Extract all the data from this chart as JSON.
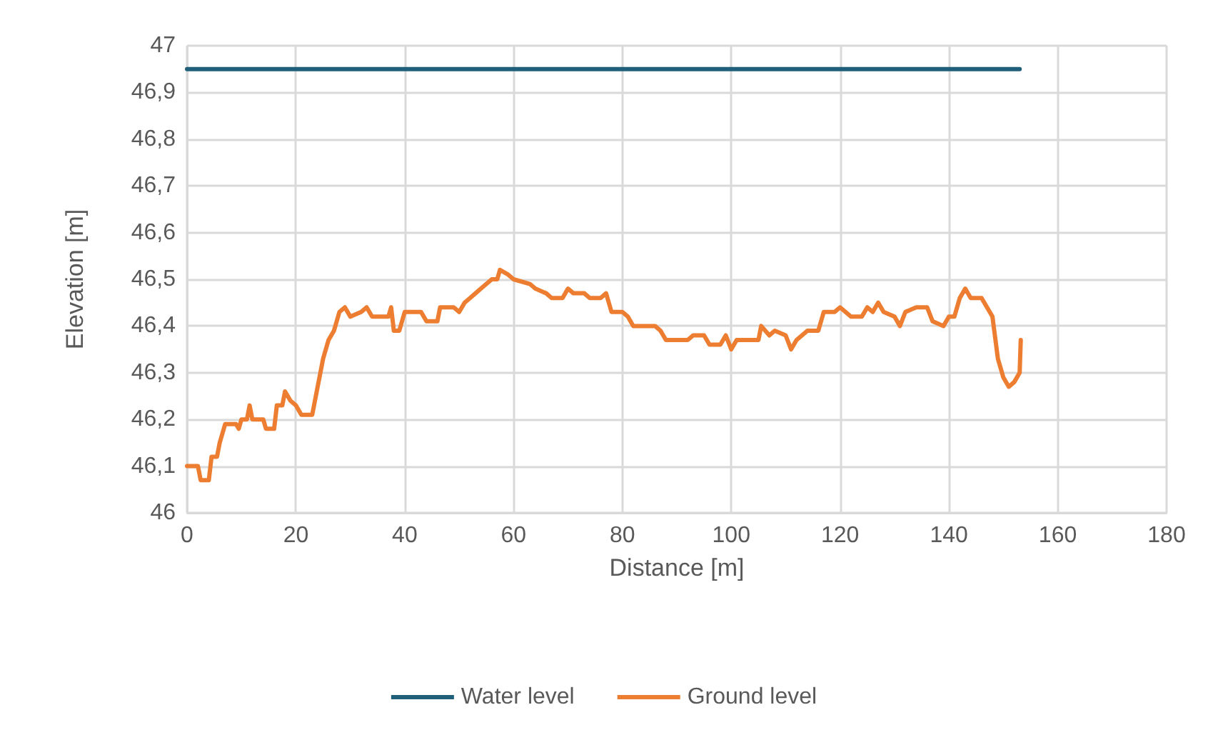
{
  "chart_data": {
    "type": "line",
    "xlabel": "Distance [m]",
    "ylabel": "Elevation [m]",
    "xlim": [
      0,
      180
    ],
    "xticks": [
      0,
      20,
      40,
      60,
      80,
      100,
      120,
      140,
      160,
      180
    ],
    "ylim": [
      46,
      47
    ],
    "yticks": [
      46,
      {
        "value": 46.1,
        "label": "46,1"
      },
      {
        "value": 46.2,
        "label": "46,2"
      },
      {
        "value": 46.3,
        "label": "46,3"
      },
      {
        "value": 46.4,
        "label": "46,4"
      },
      {
        "value": 46.5,
        "label": "46,5"
      },
      {
        "value": 46.6,
        "label": "46,6"
      },
      {
        "value": 46.7,
        "label": "46,7"
      },
      {
        "value": 46.8,
        "label": "46,8"
      },
      {
        "value": 46.9,
        "label": "46,9"
      },
      47
    ],
    "grid": true,
    "legend": "bottom",
    "marker": "none",
    "line_style": "solid",
    "series": [
      {
        "name": "Water level",
        "color": "#1f5f7a",
        "x": [
          0,
          153
        ],
        "values": [
          46.95,
          46.95
        ]
      },
      {
        "name": "Ground level",
        "color": "#ed7d31",
        "x": [
          0,
          2,
          2.5,
          4,
          4.5,
          5.5,
          6,
          7,
          9,
          9.5,
          10,
          11,
          11.5,
          12,
          14,
          14.5,
          16,
          16.5,
          17.5,
          18,
          19,
          20,
          21,
          23,
          24,
          25,
          26,
          27,
          28,
          29,
          30,
          32,
          33,
          34,
          37,
          37.5,
          38,
          39,
          40,
          41,
          43,
          44,
          46,
          46.5,
          49,
          50,
          51,
          52,
          53,
          54,
          56,
          57,
          57.5,
          59,
          60,
          63,
          64,
          66,
          67,
          69,
          70,
          71,
          73,
          74,
          76,
          77,
          78,
          80,
          81,
          82,
          84,
          86,
          87,
          88,
          92,
          93,
          95,
          96,
          98,
          99,
          100,
          101,
          105,
          105.5,
          107,
          108,
          110,
          111,
          112,
          114,
          116,
          117,
          119,
          120,
          122,
          124,
          125,
          126,
          127,
          128,
          130,
          131,
          132,
          134,
          136,
          137,
          139,
          140,
          141,
          142,
          143,
          144,
          146,
          147,
          148,
          149,
          150,
          151,
          152,
          153,
          153.2
        ],
        "values": [
          46.1,
          46.1,
          46.07,
          46.07,
          46.12,
          46.12,
          46.15,
          46.19,
          46.19,
          46.18,
          46.2,
          46.2,
          46.23,
          46.2,
          46.2,
          46.18,
          46.18,
          46.23,
          46.23,
          46.26,
          46.24,
          46.23,
          46.21,
          46.21,
          46.27,
          46.33,
          46.37,
          46.39,
          46.43,
          46.44,
          46.42,
          46.43,
          46.44,
          46.42,
          46.42,
          46.44,
          46.39,
          46.39,
          46.43,
          46.43,
          46.43,
          46.41,
          46.41,
          46.44,
          46.44,
          46.43,
          46.45,
          46.46,
          46.47,
          46.48,
          46.5,
          46.5,
          46.52,
          46.51,
          46.5,
          46.49,
          46.48,
          46.47,
          46.46,
          46.46,
          46.48,
          46.47,
          46.47,
          46.46,
          46.46,
          46.47,
          46.43,
          46.43,
          46.42,
          46.4,
          46.4,
          46.4,
          46.39,
          46.37,
          46.37,
          46.38,
          46.38,
          46.36,
          46.36,
          46.38,
          46.35,
          46.37,
          46.37,
          46.4,
          46.38,
          46.39,
          46.38,
          46.35,
          46.37,
          46.39,
          46.39,
          46.43,
          46.43,
          46.44,
          46.42,
          46.42,
          46.44,
          46.43,
          46.45,
          46.43,
          46.42,
          46.4,
          46.43,
          46.44,
          46.44,
          46.41,
          46.4,
          46.42,
          46.42,
          46.46,
          46.48,
          46.46,
          46.46,
          46.44,
          46.42,
          46.33,
          46.29,
          46.27,
          46.28,
          46.3,
          46.37
        ]
      }
    ]
  }
}
